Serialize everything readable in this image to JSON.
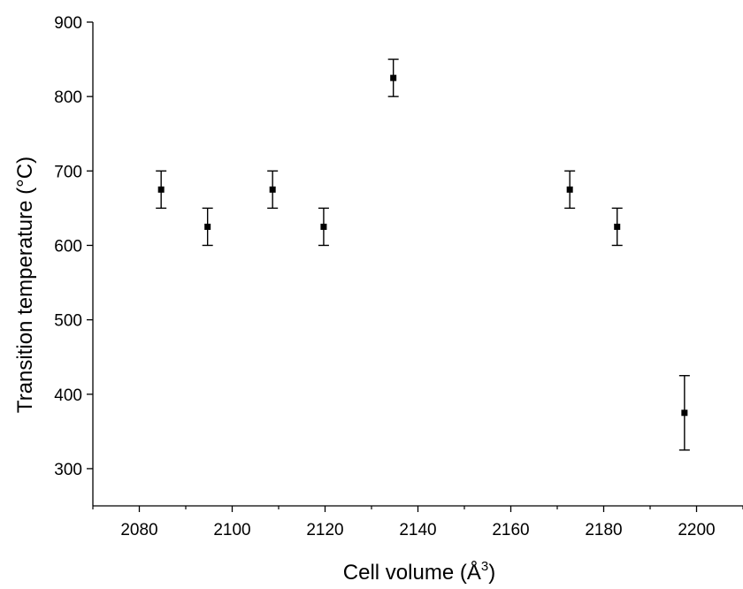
{
  "chart_data": {
    "type": "scatter",
    "xlabel": "Cell volume (Å",
    "xlabel_sup": "3",
    "xlabel_end": ")",
    "ylabel": "Transition temperature (°C)",
    "xlim": [
      2070,
      2210
    ],
    "ylim": [
      250,
      900
    ],
    "x_ticks": [
      2080,
      2100,
      2120,
      2140,
      2160,
      2180,
      2200
    ],
    "y_ticks": [
      300,
      400,
      500,
      600,
      700,
      800,
      900
    ],
    "points": [
      {
        "x": 2084.7,
        "y": 675,
        "err": 25
      },
      {
        "x": 2094.7,
        "y": 625,
        "err": 25
      },
      {
        "x": 2108.7,
        "y": 675,
        "err": 25
      },
      {
        "x": 2119.7,
        "y": 625,
        "err": 25
      },
      {
        "x": 2134.7,
        "y": 825,
        "err": 25
      },
      {
        "x": 2172.7,
        "y": 675,
        "err": 25
      },
      {
        "x": 2182.9,
        "y": 625,
        "err": 25
      },
      {
        "x": 2197.4,
        "y": 375,
        "err": 50
      }
    ],
    "grid": false,
    "legend": "none",
    "marker_color": "#000000"
  }
}
